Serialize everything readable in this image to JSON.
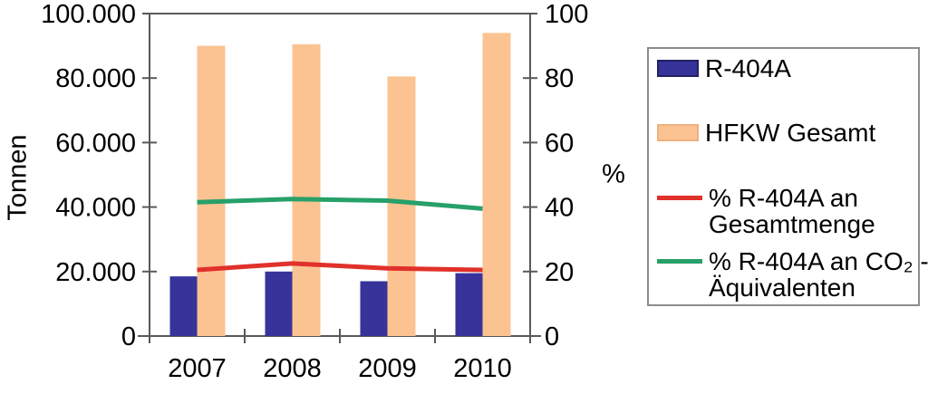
{
  "chart_data": {
    "type": "combo-bar-line",
    "title": "",
    "categories": [
      "2007",
      "2008",
      "2009",
      "2010"
    ],
    "bar_series": [
      {
        "name": "R-404A",
        "color": "#37339B",
        "border": "#23205E",
        "axis": "left",
        "values": [
          18500,
          20000,
          17000,
          19500
        ]
      },
      {
        "name": "HFKW Gesamt",
        "color": "#FBC392",
        "border": "#EFB07C",
        "axis": "left",
        "values": [
          90000,
          90500,
          80500,
          94000
        ]
      }
    ],
    "line_series": [
      {
        "name": "% R-404A an Gesamtmenge",
        "color": "#E0312A",
        "axis": "right",
        "values": [
          20.5,
          22.5,
          21,
          20.5
        ]
      },
      {
        "name": "% R-404A an CO₂ - Äquivalenten",
        "color": "#27A069",
        "axis": "right",
        "values": [
          41.5,
          42.5,
          42,
          39.5
        ]
      }
    ],
    "left_axis": {
      "title": "Tonnen",
      "min": 0,
      "max": 100000,
      "tick_labels": [
        "100.000",
        "80.000",
        "60.000",
        "40.000",
        "20.000",
        "0"
      ]
    },
    "right_axis": {
      "title": "%",
      "min": 0,
      "max": 100,
      "tick_labels": [
        "100",
        "80",
        "60",
        "40",
        "20",
        "0"
      ]
    },
    "grid": false,
    "legend_position": "right"
  },
  "legend": {
    "entries": [
      {
        "swatch": "bar",
        "color": "#37339B",
        "border": "#23205E",
        "lines": [
          "R-404A",
          ""
        ]
      },
      {
        "swatch": "bar",
        "color": "#FBC392",
        "border": "#EFB07C",
        "lines": [
          "HFKW Gesamt",
          ""
        ]
      },
      {
        "swatch": "line",
        "color": "#E0312A",
        "border": "",
        "lines": [
          "% R-404A an",
          "Gesamtmenge"
        ]
      },
      {
        "swatch": "line",
        "color": "#27A069",
        "border": "",
        "lines": [
          "% R-404A an CO₂ -",
          "Äquivalenten"
        ]
      }
    ]
  },
  "colors": {
    "axis": "#595959",
    "text": "#000000",
    "legend_border": "#8C8C8C",
    "background": "#FFFFFF"
  }
}
